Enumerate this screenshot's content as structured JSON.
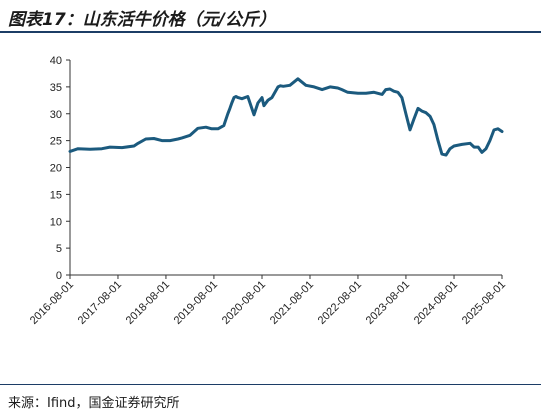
{
  "figure": {
    "title": "图表17：山东活牛价格（元/公斤）",
    "source": "来源：Ifind，国金证券研究所"
  },
  "colors": {
    "line": "#1b5a7e",
    "rule": "#1c3d66",
    "axis": "#333333"
  },
  "chart_data": {
    "type": "line",
    "title": "山东活牛价格（元/公斤）",
    "xlabel": "",
    "ylabel": "",
    "ylim": [
      0,
      40
    ],
    "yticks": [
      0,
      5,
      10,
      15,
      20,
      25,
      30,
      35,
      40
    ],
    "xlim": [
      "2016-08-01",
      "2025-08-01"
    ],
    "xtick_labels": [
      "2016-08-01",
      "2017-08-01",
      "2018-08-01",
      "2019-08-01",
      "2020-08-01",
      "2021-08-01",
      "2022-08-01",
      "2023-08-01",
      "2024-08-01",
      "2025-08-01"
    ],
    "grid": false,
    "legend": "none",
    "series": [
      {
        "x": [
          "2016-08-01",
          "2016-10-01",
          "2017-01-01",
          "2017-04-01",
          "2017-06-01",
          "2017-09-01",
          "2017-12-01",
          "2018-01-01",
          "2018-03-01",
          "2018-05-01",
          "2018-07-01",
          "2018-09-01",
          "2018-11-01",
          "2018-12-01",
          "2019-02-01",
          "2019-04-01",
          "2019-06-01",
          "2019-07-15",
          "2019-09-01",
          "2019-10-15",
          "2019-11-15",
          "2019-12-01",
          "2019-12-15",
          "2020-01-01",
          "2020-01-15",
          "2020-02-01",
          "2020-03-01",
          "2020-04-15",
          "2020-06-01",
          "2020-07-01",
          "2020-08-01",
          "2020-08-15",
          "2020-09-15",
          "2020-10-15",
          "2020-12-01",
          "2020-12-20",
          "2021-01-10",
          "2021-03-01",
          "2021-05-01",
          "2021-07-01",
          "2021-09-01",
          "2021-11-01",
          "2022-01-01",
          "2022-03-01",
          "2022-04-01",
          "2022-05-15",
          "2022-08-01",
          "2022-10-01",
          "2022-12-01",
          "2023-02-01",
          "2023-03-01",
          "2023-04-01",
          "2023-05-01",
          "2023-06-01",
          "2023-07-01",
          "2023-08-01",
          "2023-09-01",
          "2023-10-01",
          "2023-11-01",
          "2023-12-01",
          "2024-01-01",
          "2024-02-01",
          "2024-03-01",
          "2024-04-01",
          "2024-05-01",
          "2024-06-01",
          "2024-07-01",
          "2024-08-01",
          "2024-10-01",
          "2024-12-01",
          "2025-01-01",
          "2025-02-01",
          "2025-03-01",
          "2025-04-01",
          "2025-05-01",
          "2025-06-01",
          "2025-07-01",
          "2025-08-01"
        ],
        "y": [
          23.0,
          23.5,
          23.4,
          23.5,
          23.8,
          23.7,
          24.0,
          24.5,
          25.3,
          25.4,
          25.0,
          25.0,
          25.3,
          25.5,
          26.0,
          27.3,
          27.5,
          27.2,
          27.2,
          27.8,
          30.0,
          31.0,
          32.0,
          33.0,
          33.2,
          33.0,
          32.8,
          33.2,
          29.8,
          32.0,
          33.0,
          31.5,
          32.5,
          33.0,
          35.0,
          35.2,
          35.1,
          35.3,
          36.5,
          35.3,
          35.0,
          34.5,
          35.0,
          34.8,
          34.5,
          34.0,
          33.8,
          33.8,
          34.0,
          33.6,
          34.5,
          34.6,
          34.2,
          34.0,
          33.0,
          30.0,
          27.0,
          29.0,
          31.0,
          30.5,
          30.2,
          29.5,
          28.0,
          25.0,
          22.5,
          22.3,
          23.5,
          24.0,
          24.3,
          24.5,
          23.8,
          23.8,
          22.8,
          23.5,
          25.0,
          27.0,
          27.2,
          26.7
        ]
      }
    ]
  }
}
